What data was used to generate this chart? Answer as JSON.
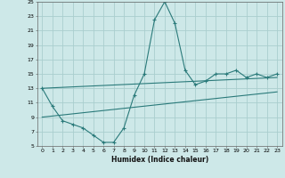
{
  "xlabel": "Humidex (Indice chaleur)",
  "xlim": [
    -0.5,
    23.5
  ],
  "ylim": [
    5,
    25
  ],
  "xticks": [
    0,
    1,
    2,
    3,
    4,
    5,
    6,
    7,
    8,
    9,
    10,
    11,
    12,
    13,
    14,
    15,
    16,
    17,
    18,
    19,
    20,
    21,
    22,
    23
  ],
  "yticks": [
    5,
    7,
    9,
    11,
    13,
    15,
    17,
    19,
    21,
    23,
    25
  ],
  "background_color": "#cde8e8",
  "grid_color": "#aacece",
  "line_color": "#2a7a7a",
  "curve1_x": [
    0,
    1,
    2,
    3,
    4,
    5,
    6,
    7,
    8,
    9,
    10,
    11,
    12,
    13,
    14,
    15,
    16,
    17,
    18,
    19,
    20,
    21,
    22,
    23
  ],
  "curve1_y": [
    13,
    10.5,
    8.5,
    8,
    7.5,
    6.5,
    5.5,
    5.5,
    7.5,
    12,
    15,
    22.5,
    25,
    22,
    15.5,
    13.5,
    14,
    15,
    15,
    15.5,
    14.5,
    15,
    14.5,
    15
  ],
  "trend1_x": [
    0,
    23
  ],
  "trend1_y": [
    13.0,
    14.5
  ],
  "trend2_x": [
    0,
    23
  ],
  "trend2_y": [
    9.0,
    12.5
  ]
}
